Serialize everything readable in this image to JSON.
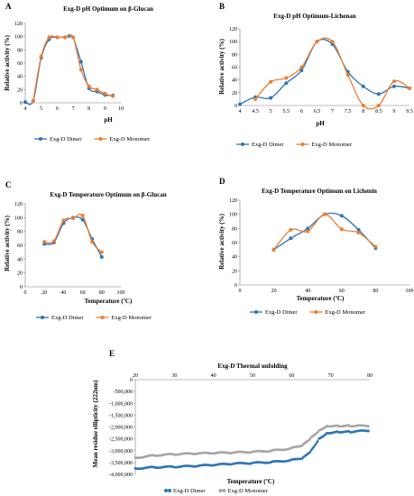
{
  "colors": {
    "dimer": "#2E75B6",
    "monomer": "#ED7D31",
    "monomer_thermal": "#A6A6A6",
    "axis": "#000000"
  },
  "chart_data": [
    {
      "panel": "A",
      "type": "line",
      "title": "Exg-D pH Optimum on β-Glucan",
      "xlabel": "pH",
      "ylabel": "Relative activity (%)",
      "xlim": [
        4,
        10
      ],
      "ylim": [
        0,
        120
      ],
      "xticks": [
        4,
        5,
        6,
        7,
        8,
        9,
        10
      ],
      "yticks": [
        0,
        20,
        40,
        60,
        80,
        100,
        120
      ],
      "legend": "bottom",
      "grid": false,
      "series": [
        {
          "name": "Exg-D Dimer",
          "x": [
            4.0,
            4.5,
            5.0,
            5.5,
            6.0,
            6.5,
            6.75,
            7.0,
            7.5,
            8.0,
            8.5,
            9.0,
            9.5
          ],
          "y": [
            1,
            3,
            68,
            96,
            99,
            99,
            101,
            99,
            62,
            22,
            17,
            12,
            11
          ]
        },
        {
          "name": "Exg-D Monomer",
          "x": [
            4.5,
            5.0,
            5.5,
            6.0,
            6.5,
            7.0,
            7.5,
            8.0,
            8.5,
            9.0,
            9.5
          ],
          "y": [
            3,
            70,
            99,
            99,
            99,
            99,
            50,
            25,
            20,
            14,
            10
          ]
        }
      ]
    },
    {
      "panel": "B",
      "type": "line",
      "title": "Exg-D pH Optimum-Lichenan",
      "xlabel": "pH",
      "ylabel": "Relative activity (%)",
      "xlim": [
        4,
        9.5
      ],
      "ylim": [
        0,
        120
      ],
      "xticks": [
        4,
        4.5,
        5,
        5.5,
        6,
        6.5,
        7,
        7.5,
        8,
        8.5,
        9,
        9.5
      ],
      "xticklabels": [
        "4",
        "4.5",
        "5",
        "5.5",
        "6",
        "6.5",
        "7",
        "7.5",
        "8",
        "8.5",
        "9",
        "9.5"
      ],
      "yticks": [
        0,
        20,
        40,
        60,
        80,
        100,
        120
      ],
      "legend": "bottom",
      "grid": false,
      "series": [
        {
          "name": "Exg-D Dimer",
          "x": [
            4,
            4.5,
            5,
            5.5,
            6,
            6.5,
            7,
            7.5,
            8,
            8.5,
            9,
            9.5
          ],
          "y": [
            2,
            13,
            12,
            35,
            55,
            100,
            96,
            53,
            30,
            18,
            30,
            27
          ]
        },
        {
          "name": "Exg-D Monomer",
          "x": [
            4.5,
            5,
            5.5,
            6,
            6.5,
            7,
            7.5,
            8,
            8.5,
            9,
            9.5
          ],
          "y": [
            10,
            37,
            43,
            60,
            100,
            100,
            48,
            0,
            0,
            38,
            27
          ]
        }
      ]
    },
    {
      "panel": "C",
      "type": "line",
      "title": "Exg-D Temperature Optimum on β-Glucan",
      "xlabel": "Temperature (ºC)",
      "ylabel": "Relative activity (%)",
      "xlim": [
        0,
        100
      ],
      "ylim": [
        0,
        120
      ],
      "xticks": [
        0,
        20,
        40,
        60,
        80,
        100
      ],
      "yticks": [
        0,
        20,
        40,
        60,
        80,
        100,
        120
      ],
      "legend": "bottom",
      "grid": false,
      "series": [
        {
          "name": "Exg-D Dimer",
          "x": [
            20,
            30,
            40,
            50,
            60,
            70,
            80
          ],
          "y": [
            62,
            64,
            92,
            100,
            97,
            69,
            43
          ]
        },
        {
          "name": "Exg-D Monomer",
          "x": [
            20,
            30,
            40,
            50,
            60,
            70,
            80
          ],
          "y": [
            65,
            66,
            96,
            99,
            103,
            65,
            50
          ]
        }
      ]
    },
    {
      "panel": "D",
      "type": "line",
      "title": "Exg-D Temperature Optimum on Lichenin",
      "xlabel": "Temperature (ºC)",
      "ylabel": "Relative activity (%)",
      "xlim": [
        0,
        100
      ],
      "ylim": [
        0,
        120
      ],
      "xticks": [
        0,
        20,
        40,
        60,
        80,
        100
      ],
      "yticks": [
        0,
        20,
        40,
        60,
        80,
        100,
        120
      ],
      "legend": "bottom",
      "grid": false,
      "series": [
        {
          "name": "Exg-D Dimer",
          "x": [
            20,
            30,
            40,
            50,
            60,
            70,
            80
          ],
          "y": [
            50,
            66,
            80,
            100,
            98,
            78,
            52
          ]
        },
        {
          "name": "Exg-D Monomer",
          "x": [
            20,
            30,
            40,
            50,
            60,
            70,
            80
          ],
          "y": [
            50,
            78,
            76,
            100,
            79,
            74,
            54
          ]
        }
      ]
    },
    {
      "panel": "E",
      "type": "scatter",
      "title": "Exg-D Thermal unfolding",
      "xlabel": "Temperature (ºC)",
      "ylabel": "Mean residue ellipticity (222nm)",
      "xlim": [
        20,
        80
      ],
      "ylim": [
        -4000000,
        0
      ],
      "xticks": [
        20,
        30,
        40,
        50,
        60,
        70,
        80
      ],
      "yticks": [
        0,
        -500000,
        -1000000,
        -1500000,
        -2000000,
        -2500000,
        -3000000,
        -3500000,
        -4000000
      ],
      "yticklabels": [
        "0",
        "-500,000",
        "-1,000,000",
        "-1,500,000",
        "-2,000,000",
        "-2,500,000",
        "-3,000,000",
        "-3,500,000",
        "-4,000,000"
      ],
      "x_axis_position": "top",
      "legend": "bottom",
      "grid": false,
      "series": [
        {
          "name": "Exg-D Dimer",
          "x": [
            20,
            25,
            30,
            35,
            40,
            45,
            50,
            55,
            60,
            63,
            65,
            67,
            69,
            72,
            75,
            80
          ],
          "y": [
            -3750000,
            -3700000,
            -3680000,
            -3650000,
            -3600000,
            -3550000,
            -3520000,
            -3480000,
            -3400000,
            -3300000,
            -3000000,
            -2500000,
            -2250000,
            -2200000,
            -2200000,
            -2150000
          ]
        },
        {
          "name": "Exg-D Monomer",
          "x": [
            20,
            25,
            30,
            35,
            40,
            45,
            50,
            55,
            60,
            63,
            65,
            67,
            69,
            72,
            75,
            80
          ],
          "y": [
            -3300000,
            -3200000,
            -3150000,
            -3120000,
            -3100000,
            -3080000,
            -3050000,
            -3000000,
            -2900000,
            -2750000,
            -2450000,
            -2150000,
            -1950000,
            -1950000,
            -1950000,
            -1950000
          ]
        }
      ]
    }
  ]
}
